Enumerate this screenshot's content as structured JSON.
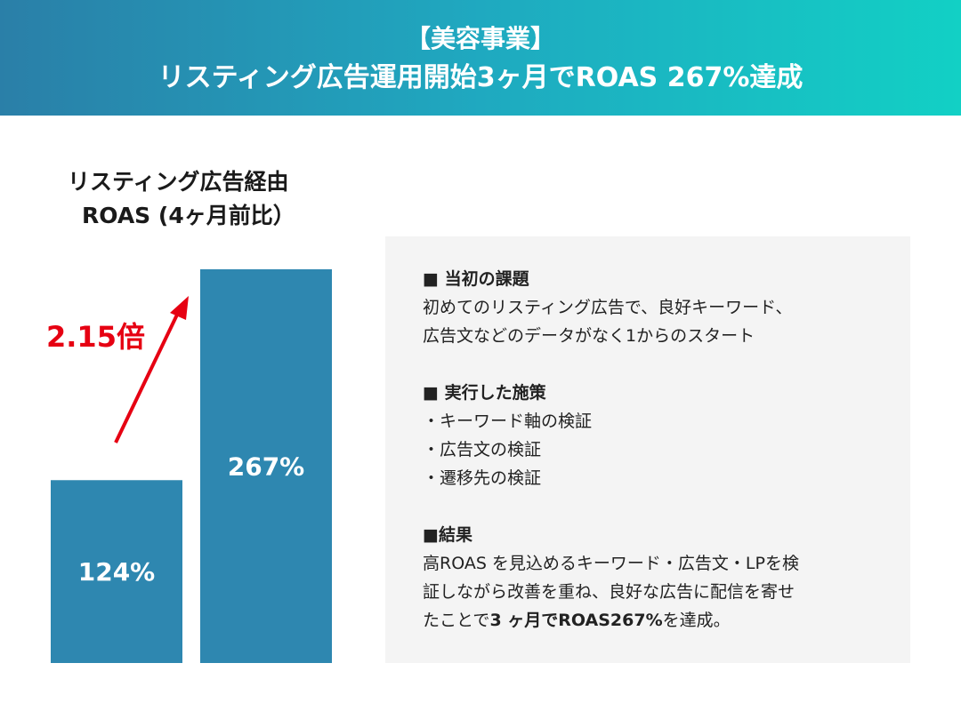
{
  "banner": {
    "line1": "【美容事業】",
    "line2": "リスティング広告運用開始3ヶ月でROAS 267%達成"
  },
  "chart_data": {
    "type": "bar",
    "title_line1": "リスティング広告経由",
    "title_line2": "ROAS (4ヶ月前比）",
    "categories": [
      "",
      ""
    ],
    "values": [
      124,
      267
    ],
    "value_labels": [
      "124%",
      "267%"
    ],
    "ylim": [
      0,
      280
    ],
    "bar_color": "#2e87b0",
    "annotation": {
      "text": "2.15倍",
      "color": "#e60012",
      "arrow_color": "#e60012"
    }
  },
  "panel": {
    "section1_head": "■ 当初の課題",
    "section1_lines": [
      "初めてのリスティング広告で、良好キーワード、",
      "広告文などのデータがなく1からのスタート"
    ],
    "section2_head": "■ 実行した施策",
    "section2_items": [
      "・キーワード軸の検証",
      "・広告文の検証",
      "・遷移先の検証"
    ],
    "section3_head": "■結果",
    "section3_line1": "高ROAS を見込めるキーワード・広告文・LPを検",
    "section3_line2": "証しながら改善を重ね、良好な広告に配信を寄せ",
    "section3_line3_pre": "たことで",
    "section3_line3_bold": "3 ヶ月でROAS267%",
    "section3_line3_post": "を達成。"
  }
}
